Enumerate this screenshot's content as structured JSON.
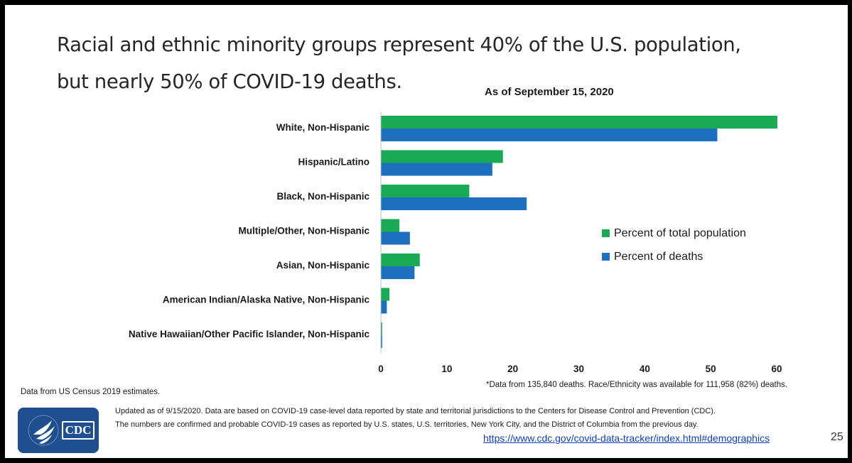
{
  "slide": {
    "headline_line1": "Racial and ethnic minority groups represent 40% of the U.S. population,",
    "headline_line2": "but nearly 50% of COVID-19 deaths.",
    "census_note": "Data from US Census 2019 estimates.",
    "deaths_note": "*Data from 135,840 deaths. Race/Ethnicity was available for 111,958 (82%) deaths.",
    "updated_line1": "Updated as of 9/15/2020. Data are based on COVID-19 case-level data reported by state and territorial jurisdictions to the Centers for Disease Control and Prevention (CDC).",
    "updated_line2": "The numbers are confirmed and probable COVID-19 cases as reported by U.S. states, U.S. territories, New York City, and the District of Columbia from the previous day.",
    "source_link": "https://www.cdc.gov/covid-data-tracker/index.html#demographics",
    "page_number": "25",
    "logo_text": "CDC"
  },
  "chart_data": {
    "type": "bar",
    "orientation": "horizontal",
    "title": "As of September 15, 2020",
    "xlabel": "",
    "ylabel": "",
    "categories": [
      "White, Non-Hispanic",
      "Hispanic/Latino",
      "Black, Non-Hispanic",
      "Multiple/Other, Non-Hispanic",
      "Asian, Non-Hispanic",
      "American Indian/Alaska Native, Non-Hispanic",
      "Native Hawaiian/Other Pacific Islander, Non-Hispanic"
    ],
    "series": [
      {
        "name": "Percent of total population",
        "color": "#1aaa55",
        "values": [
          60.1,
          18.5,
          13.4,
          2.8,
          5.9,
          1.3,
          0.2
        ]
      },
      {
        "name": "Percent of deaths",
        "color": "#1f6fbf",
        "values": [
          51.0,
          16.9,
          22.1,
          4.4,
          5.1,
          0.9,
          0.2
        ]
      }
    ],
    "xlim": [
      0,
      60
    ],
    "xticks": [
      0,
      10,
      20,
      30,
      40,
      50,
      60
    ],
    "grid": false,
    "legend_position": "right"
  }
}
